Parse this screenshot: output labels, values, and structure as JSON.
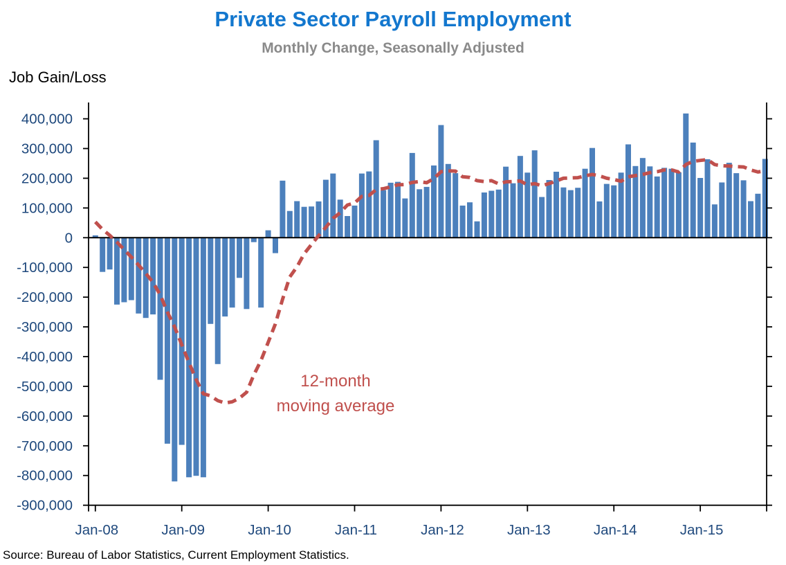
{
  "header": {
    "title": "Private Sector Payroll Employment",
    "subtitle": "Monthly Change, Seasonally Adjusted",
    "axis_title": "Job Gain/Loss"
  },
  "annotation": {
    "line1": "12-month",
    "line2": "moving average"
  },
  "source_note": "Source: Bureau of Labor Statistics, Current Employment Statistics.",
  "colors": {
    "title": "#1377CE",
    "subtitle": "#8A8A8A",
    "bar": "#4C80BC",
    "ma_line": "#C0504D",
    "axis_text": "#1F497D",
    "axis_line": "#000000"
  },
  "chart_data": {
    "type": "bar",
    "title": "Private Sector Payroll Employment",
    "subtitle": "Monthly Change, Seasonally Adjusted",
    "ylabel": "Job Gain/Loss",
    "unit": "jobs, monthly change (values stored in thousands)",
    "ylim_thousands": [
      -900,
      455
    ],
    "grid": false,
    "x_tick_labels": [
      "Jan-08",
      "Jan-09",
      "Jan-10",
      "Jan-11",
      "Jan-12",
      "Jan-13",
      "Jan-14",
      "Jan-15"
    ],
    "y_tick_labels": [
      "400,000",
      "300,000",
      "200,000",
      "100,000",
      "0",
      "-100,000",
      "-200,000",
      "-300,000",
      "-400,000",
      "-500,000",
      "-600,000",
      "-700,000",
      "-800,000",
      "-900,000"
    ],
    "y_tick_values_thousands": [
      400,
      300,
      200,
      100,
      0,
      -100,
      -200,
      -300,
      -400,
      -500,
      -600,
      -700,
      -800,
      -900
    ],
    "months": [
      "Jan-08",
      "Feb-08",
      "Mar-08",
      "Apr-08",
      "May-08",
      "Jun-08",
      "Jul-08",
      "Aug-08",
      "Sep-08",
      "Oct-08",
      "Nov-08",
      "Dec-08",
      "Jan-09",
      "Feb-09",
      "Mar-09",
      "Apr-09",
      "May-09",
      "Jun-09",
      "Jul-09",
      "Aug-09",
      "Sep-09",
      "Oct-09",
      "Nov-09",
      "Dec-09",
      "Jan-10",
      "Feb-10",
      "Mar-10",
      "Apr-10",
      "May-10",
      "Jun-10",
      "Jul-10",
      "Aug-10",
      "Sep-10",
      "Oct-10",
      "Nov-10",
      "Dec-10",
      "Jan-11",
      "Feb-11",
      "Mar-11",
      "Apr-11",
      "May-11",
      "Jun-11",
      "Jul-11",
      "Aug-11",
      "Sep-11",
      "Oct-11",
      "Nov-11",
      "Dec-11",
      "Jan-12",
      "Feb-12",
      "Mar-12",
      "Apr-12",
      "May-12",
      "Jun-12",
      "Jul-12",
      "Aug-12",
      "Sep-12",
      "Oct-12",
      "Nov-12",
      "Dec-12",
      "Jan-13",
      "Feb-13",
      "Mar-13",
      "Apr-13",
      "May-13",
      "Jun-13",
      "Jul-13",
      "Aug-13",
      "Sep-13",
      "Oct-13",
      "Nov-13",
      "Dec-13",
      "Jan-14",
      "Feb-14",
      "Mar-14",
      "Apr-14",
      "May-14",
      "Jun-14",
      "Jul-14",
      "Aug-14",
      "Sep-14",
      "Oct-14",
      "Nov-14",
      "Dec-14",
      "Jan-15",
      "Feb-15",
      "Mar-15",
      "Apr-15",
      "May-15",
      "Jun-15",
      "Jul-15",
      "Aug-15",
      "Sep-15",
      "Oct-15"
    ],
    "values_thousands": [
      8,
      -115,
      -107,
      -225,
      -217,
      -210,
      -255,
      -270,
      -258,
      -478,
      -693,
      -820,
      -697,
      -806,
      -801,
      -806,
      -290,
      -425,
      -265,
      -235,
      -135,
      -240,
      -15,
      -235,
      25,
      -52,
      192,
      90,
      123,
      104,
      105,
      122,
      195,
      216,
      128,
      73,
      108,
      216,
      223,
      328,
      160,
      185,
      188,
      132,
      285,
      163,
      171,
      243,
      379,
      248,
      217,
      108,
      119,
      55,
      152,
      158,
      162,
      239,
      183,
      275,
      219,
      294,
      137,
      194,
      222,
      169,
      160,
      168,
      232,
      302,
      122,
      181,
      176,
      219,
      314,
      241,
      268,
      240,
      206,
      235,
      232,
      220,
      418,
      320,
      201,
      264,
      112,
      186,
      252,
      217,
      193,
      123,
      148,
      265
    ],
    "series": [
      {
        "name": "Monthly change",
        "style": "bar"
      },
      {
        "name": "12-month moving average",
        "style": "dashed-line"
      }
    ],
    "moving_average_thousands": [
      53,
      28,
      8,
      -15,
      -40,
      -65,
      -92,
      -120,
      -150,
      -192,
      -250,
      -300,
      -360,
      -420,
      -477,
      -525,
      -532,
      -548,
      -556,
      -552,
      -540,
      -520,
      -462,
      -413,
      -352,
      -290,
      -207,
      -132,
      -98,
      -54,
      -23,
      7,
      35,
      65,
      84,
      110,
      117,
      139,
      142,
      162,
      165,
      171,
      178,
      179,
      186,
      189,
      185,
      199,
      222,
      225,
      224,
      205,
      203,
      192,
      189,
      192,
      181,
      188,
      189,
      191,
      178,
      182,
      175,
      182,
      191,
      200,
      201,
      202,
      208,
      213,
      208,
      200,
      196,
      190,
      205,
      209,
      213,
      219,
      222,
      228,
      228,
      221,
      246,
      257,
      260,
      263,
      246,
      242,
      241,
      239,
      238,
      228,
      221,
      225
    ]
  }
}
